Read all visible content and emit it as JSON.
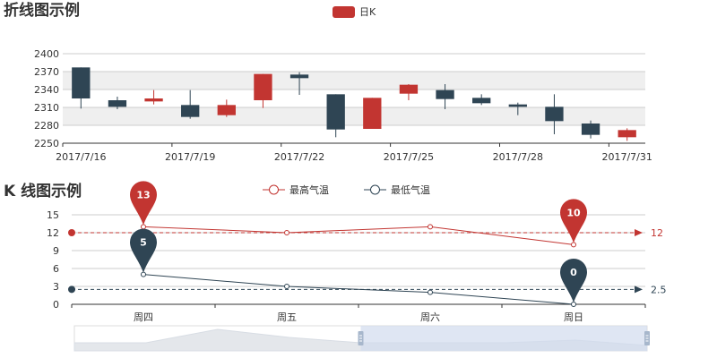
{
  "colors": {
    "up": "#c23531",
    "down": "#2f4554",
    "grid": "#cccccc",
    "band": "#e8e8e8",
    "axis": "#333333",
    "zoom_fill": "#d2dbee",
    "zoom_handle": "#a7b7cc",
    "zoom_shadow": "#e4e7eb"
  },
  "chart_data": [
    {
      "type": "candlestick",
      "title": "折线图示例",
      "legend": [
        "日K"
      ],
      "legend_position": "top-center",
      "split_area": true,
      "x_labels_shown": [
        "2017/7/16",
        "2017/7/19",
        "2017/7/22",
        "2017/7/25",
        "2017/7/28",
        "2017/7/31"
      ],
      "ylim": [
        2250,
        2400
      ],
      "yticks": [
        2250,
        2280,
        2310,
        2340,
        2370,
        2400
      ],
      "series": [
        {
          "name": "日K",
          "candles": [
            {
              "open": 2377,
              "close": 2325,
              "low": 2308,
              "high": 2377
            },
            {
              "open": 2322,
              "close": 2311,
              "low": 2307,
              "high": 2328
            },
            {
              "open": 2320,
              "close": 2325,
              "low": 2315,
              "high": 2339
            },
            {
              "open": 2314,
              "close": 2294,
              "low": 2291,
              "high": 2339
            },
            {
              "open": 2297,
              "close": 2314,
              "low": 2294,
              "high": 2323
            },
            {
              "open": 2322,
              "close": 2366,
              "low": 2309,
              "high": 2366
            },
            {
              "open": 2365,
              "close": 2359,
              "low": 2331,
              "high": 2369
            },
            {
              "open": 2332,
              "close": 2273,
              "low": 2260,
              "high": 2332
            },
            {
              "open": 2274,
              "close": 2326,
              "low": 2274,
              "high": 2326
            },
            {
              "open": 2333,
              "close": 2348,
              "low": 2322,
              "high": 2349
            },
            {
              "open": 2339,
              "close": 2324,
              "low": 2307,
              "high": 2349
            },
            {
              "open": 2326,
              "close": 2317,
              "low": 2314,
              "high": 2332
            },
            {
              "open": 2315,
              "close": 2311,
              "low": 2297,
              "high": 2318
            },
            {
              "open": 2311,
              "close": 2287,
              "low": 2265,
              "high": 2332
            },
            {
              "open": 2283,
              "close": 2264,
              "low": 2258,
              "high": 2288
            },
            {
              "open": 2260,
              "close": 2272,
              "low": 2254,
              "high": 2275
            }
          ]
        }
      ]
    },
    {
      "type": "line",
      "title": "K 线图示例",
      "legend_position": "top-center",
      "categories": [
        "周四",
        "周五",
        "周六",
        "周日"
      ],
      "ylim": [
        0,
        15
      ],
      "yticks": [
        0,
        3,
        6,
        9,
        12,
        15
      ],
      "series": [
        {
          "name": "最高气温",
          "values": [
            13,
            12,
            13,
            10
          ],
          "pins": [
            {
              "index": 0,
              "label": "13"
            },
            {
              "index": 3,
              "label": "10"
            }
          ],
          "mark_line": {
            "value": 12,
            "label": "12"
          }
        },
        {
          "name": "最低气温",
          "values": [
            5,
            3,
            2,
            0
          ],
          "pins": [
            {
              "index": 0,
              "label": "5"
            },
            {
              "index": 3,
              "label": "0"
            }
          ],
          "mark_line": {
            "value": 2.5,
            "label": "2.5"
          }
        }
      ],
      "data_zoom": {
        "start_percent": 50,
        "end_percent": 100,
        "preview_values": [
          3,
          3,
          8,
          5,
          3,
          3,
          3,
          4,
          2
        ]
      }
    }
  ]
}
